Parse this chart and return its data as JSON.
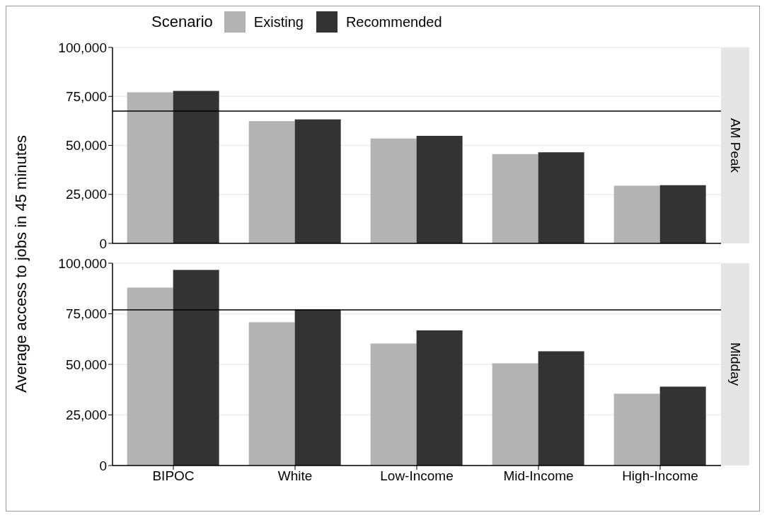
{
  "chart_data": [
    {
      "type": "bar",
      "annotations": [
        "AM Peak"
      ],
      "ylabel": "Average access to jobs in 45 minutes",
      "legend_title": "Scenario",
      "legend": "top",
      "grid": "y",
      "tick_labels": "y",
      "categories": [
        null,
        null,
        null,
        null,
        null
      ],
      "series": [
        {
          "name": "Existing",
          "color": "#b3b3b3",
          "values": [
            77100,
            62400,
            53500,
            45600,
            29400
          ]
        },
        {
          "name": "Recommended",
          "color": "#333333",
          "values": [
            77800,
            63300,
            54900,
            46500,
            29700
          ]
        }
      ],
      "ylim": [
        0,
        100000
      ],
      "yticks": [
        {
          "value": 0,
          "label": "0"
        },
        {
          "value": 25000,
          "label": "25,000"
        },
        {
          "value": 50000,
          "label": "50,000"
        },
        {
          "value": 75000,
          "label": "75,000"
        },
        {
          "value": 100000,
          "label": "100,000"
        }
      ],
      "ref_lines": [
        {
          "axis": "y",
          "value": 67500,
          "color": "#000000"
        }
      ]
    },
    {
      "type": "bar",
      "annotations": [
        "Midday"
      ],
      "grid": "y",
      "categories": [
        "BIPOC",
        "White",
        "Low-Income",
        "Mid-Income",
        "High-Income"
      ],
      "series": [
        {
          "name": "Existing",
          "color": "#b3b3b3",
          "values": [
            87900,
            70800,
            60300,
            50500,
            35500
          ]
        },
        {
          "name": "Recommended",
          "color": "#333333",
          "values": [
            96700,
            77100,
            66800,
            56500,
            39000
          ]
        }
      ],
      "ylim": [
        0,
        100000
      ],
      "yticks": [
        {
          "value": 0,
          "label": "0"
        },
        {
          "value": 25000,
          "label": "25,000"
        },
        {
          "value": 50000,
          "label": "50,000"
        },
        {
          "value": 75000,
          "label": "75,000"
        },
        {
          "value": 100000,
          "label": "100,000"
        }
      ],
      "ref_lines": [
        {
          "axis": "y",
          "value": 76900,
          "color": "#000000"
        }
      ]
    }
  ]
}
